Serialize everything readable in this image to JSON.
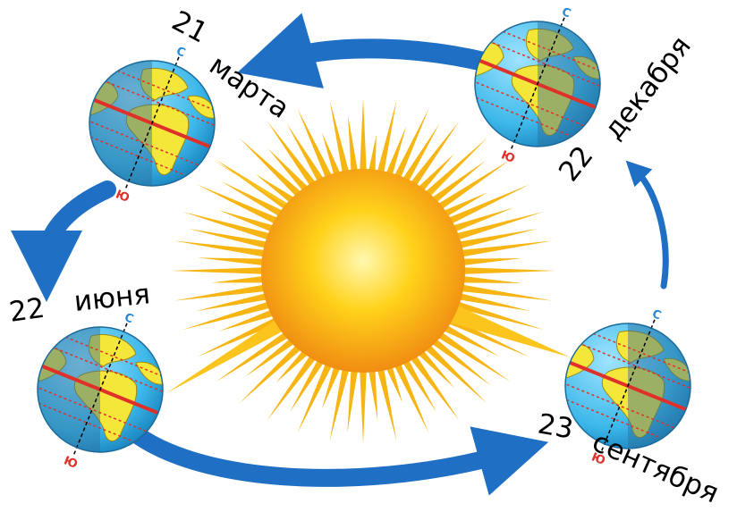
{
  "labels": {
    "march": {
      "day": "21",
      "month": "марта"
    },
    "june": {
      "day": "22",
      "month": "июня"
    },
    "september": {
      "day": "23",
      "month": "сентября"
    },
    "december": {
      "day": "22",
      "month": "декабря"
    }
  },
  "poles": {
    "north": "С",
    "south": "Ю"
  },
  "colors": {
    "arrow": "#1f6fc4",
    "sun_core": "#ffd21a",
    "sun_rays": "#f7b514",
    "ocean": "#3db8ea",
    "land": "#f5e63a",
    "night_side": "#2f6f9c",
    "equator": "#e0302a",
    "north_label": "#2a8ad8",
    "south_label": "#e0302a"
  }
}
